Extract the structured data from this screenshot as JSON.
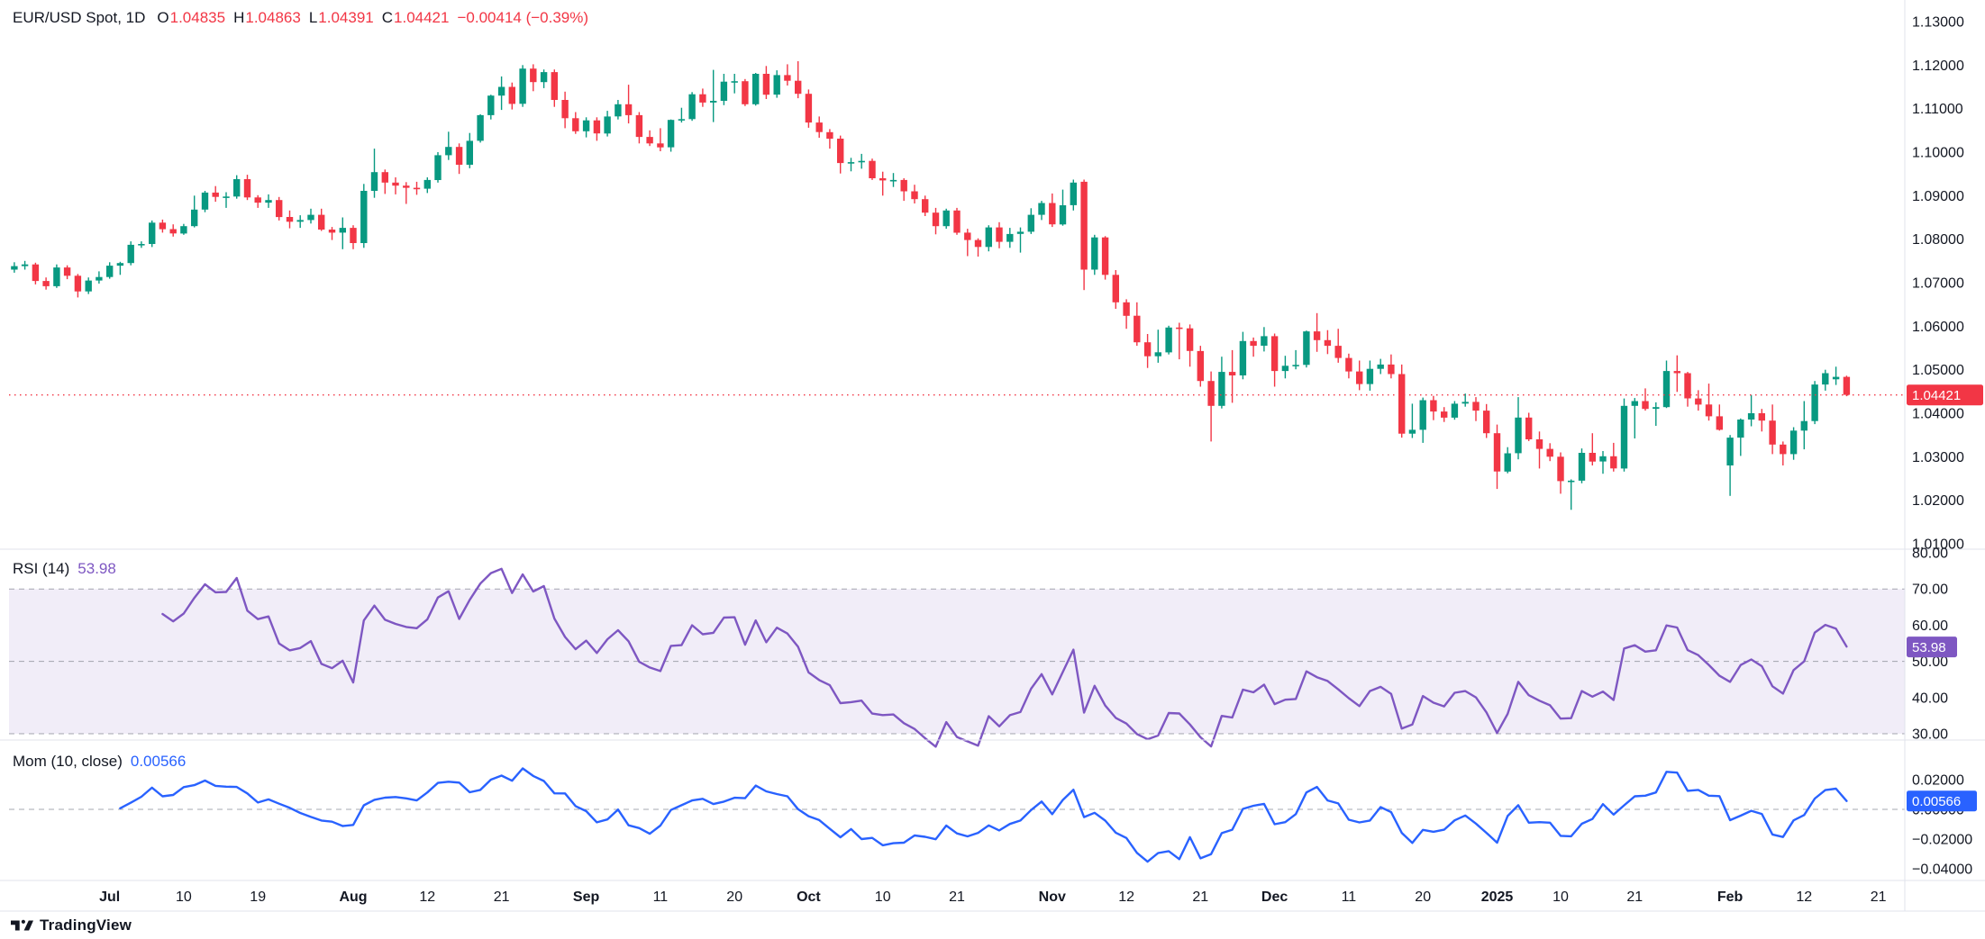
{
  "header": {
    "symbol_title": "EUR/USD Spot, 1D",
    "ohlc": {
      "open_label": "O",
      "open": "1.04835",
      "high_label": "H",
      "high": "1.04863",
      "low_label": "L",
      "low": "1.04391",
      "close_label": "C",
      "close": "1.04421",
      "change": "−0.00414 (−0.39%)"
    }
  },
  "indicators": {
    "rsi": {
      "title": "RSI (14)",
      "value": "53.98"
    },
    "momentum": {
      "title": "Mom (10, close)",
      "value": "0.00566"
    }
  },
  "axes": {
    "price": {
      "labels": [
        {
          "value": 1.13,
          "label": "1.13000"
        },
        {
          "value": 1.12,
          "label": "1.12000"
        },
        {
          "value": 1.11,
          "label": "1.11000"
        },
        {
          "value": 1.1,
          "label": "1.10000"
        },
        {
          "value": 1.09,
          "label": "1.09000"
        },
        {
          "value": 1.08,
          "label": "1.08000"
        },
        {
          "value": 1.07,
          "label": "1.07000"
        },
        {
          "value": 1.06,
          "label": "1.06000"
        },
        {
          "value": 1.05,
          "label": "1.05000"
        },
        {
          "value": 1.04,
          "label": "1.04000"
        },
        {
          "value": 1.03,
          "label": "1.03000"
        },
        {
          "value": 1.02,
          "label": "1.02000"
        },
        {
          "value": 1.01,
          "label": "1.01000"
        }
      ],
      "last_price": {
        "value": 1.04421,
        "label": "1.04421"
      }
    },
    "rsi": {
      "labels": [
        {
          "value": 80,
          "label": "80.00"
        },
        {
          "value": 70,
          "label": "70.00"
        },
        {
          "value": 60,
          "label": "60.00"
        },
        {
          "value": 50,
          "label": "50.00"
        },
        {
          "value": 40,
          "label": "40.00"
        },
        {
          "value": 30,
          "label": "30.00"
        }
      ],
      "badge": {
        "value": 53.98,
        "label": "53.98"
      }
    },
    "momentum": {
      "labels": [
        {
          "value": 0.02,
          "label": "0.02000"
        },
        {
          "value": 0.0,
          "label": "0.00000"
        },
        {
          "value": -0.02,
          "label": "−0.02000"
        },
        {
          "value": -0.04,
          "label": "−0.04000"
        }
      ],
      "badge": {
        "value": 0.00566,
        "label": "0.00566"
      }
    },
    "time": {
      "labels": [
        {
          "slot": 9,
          "label": "Jul",
          "major": true
        },
        {
          "slot": 16,
          "label": "10",
          "major": false
        },
        {
          "slot": 23,
          "label": "19",
          "major": false
        },
        {
          "slot": 32,
          "label": "Aug",
          "major": true
        },
        {
          "slot": 39,
          "label": "12",
          "major": false
        },
        {
          "slot": 46,
          "label": "21",
          "major": false
        },
        {
          "slot": 54,
          "label": "Sep",
          "major": true
        },
        {
          "slot": 61,
          "label": "11",
          "major": false
        },
        {
          "slot": 68,
          "label": "20",
          "major": false
        },
        {
          "slot": 75,
          "label": "Oct",
          "major": true
        },
        {
          "slot": 82,
          "label": "10",
          "major": false
        },
        {
          "slot": 89,
          "label": "21",
          "major": false
        },
        {
          "slot": 98,
          "label": "Nov",
          "major": true
        },
        {
          "slot": 105,
          "label": "12",
          "major": false
        },
        {
          "slot": 112,
          "label": "21",
          "major": false
        },
        {
          "slot": 119,
          "label": "Dec",
          "major": true
        },
        {
          "slot": 126,
          "label": "11",
          "major": false
        },
        {
          "slot": 133,
          "label": "20",
          "major": false
        },
        {
          "slot": 140,
          "label": "2025",
          "major": true
        },
        {
          "slot": 146,
          "label": "10",
          "major": false
        },
        {
          "slot": 153,
          "label": "21",
          "major": false
        },
        {
          "slot": 162,
          "label": "Feb",
          "major": true
        },
        {
          "slot": 169,
          "label": "12",
          "major": false
        },
        {
          "slot": 176,
          "label": "21",
          "major": false
        }
      ]
    }
  },
  "branding": {
    "name": "TradingView"
  },
  "colors": {
    "up": "#089981",
    "down": "#f23645",
    "rsi_line": "#7e57c2",
    "rsi_band_fill": "rgba(126,87,194,0.11)",
    "momentum_line": "#2962ff",
    "last_price": "#f23645",
    "grid_line": "#e0e3eb",
    "dashed_level": "#787b86",
    "axis_text": "#131722"
  },
  "chart_data": {
    "type": "candlestick",
    "title": "EUR/USD Spot, 1D",
    "symbol": "EUR/USD Spot",
    "interval": "1D",
    "panes": [
      "price",
      "rsi",
      "momentum"
    ],
    "price_axis_range": [
      1.01,
      1.13
    ],
    "rsi_settings": {
      "period": 14,
      "overbought": 70,
      "middle": 50,
      "oversold": 30,
      "last": 53.98
    },
    "momentum_settings": {
      "period": 10,
      "source": "close",
      "last": 0.00566
    },
    "last_bar": {
      "open": 1.04835,
      "high": 1.04863,
      "low": 1.04391,
      "close": 1.04421,
      "change": -0.00414,
      "change_pct": -0.39
    },
    "candles": [
      [
        1.073,
        1.0747,
        1.0723,
        1.0738
      ],
      [
        1.0738,
        1.075,
        1.073,
        1.0742
      ],
      [
        1.0742,
        1.0746,
        1.0696,
        1.0704
      ],
      [
        1.0704,
        1.0712,
        1.0684,
        1.0692
      ],
      [
        1.0692,
        1.0742,
        1.0688,
        1.0735
      ],
      [
        1.0735,
        1.074,
        1.0708,
        1.0716
      ],
      [
        1.0716,
        1.072,
        1.0666,
        1.068
      ],
      [
        1.068,
        1.0712,
        1.0674,
        1.0705
      ],
      [
        1.0705,
        1.0726,
        1.0698,
        1.0713
      ],
      [
        1.0713,
        1.0747,
        1.0709,
        1.0739
      ],
      [
        1.0739,
        1.0748,
        1.0718,
        1.0745
      ],
      [
        1.0745,
        1.0795,
        1.074,
        1.0787
      ],
      [
        1.0787,
        1.0795,
        1.078,
        1.0789
      ],
      [
        1.0789,
        1.0843,
        1.0782,
        1.0838
      ],
      [
        1.0838,
        1.0845,
        1.0815,
        1.0823
      ],
      [
        1.0823,
        1.0834,
        1.0806,
        1.0813
      ],
      [
        1.0813,
        1.0835,
        1.081,
        1.083
      ],
      [
        1.083,
        1.09,
        1.0827,
        1.0868
      ],
      [
        1.0868,
        1.0911,
        1.0862,
        1.0907
      ],
      [
        1.0907,
        1.0922,
        1.0886,
        1.0897
      ],
      [
        1.0897,
        1.0908,
        1.0872,
        1.0898
      ],
      [
        1.0898,
        1.0947,
        1.0893,
        1.0938
      ],
      [
        1.0938,
        1.0948,
        1.089,
        1.0896
      ],
      [
        1.0896,
        1.0901,
        1.0872,
        1.0884
      ],
      [
        1.0884,
        1.0903,
        1.0872,
        1.089
      ],
      [
        1.089,
        1.0897,
        1.0843,
        1.0851
      ],
      [
        1.0851,
        1.0866,
        1.0825,
        1.084
      ],
      [
        1.084,
        1.0855,
        1.0826,
        1.0844
      ],
      [
        1.0844,
        1.087,
        1.0836,
        1.0856
      ],
      [
        1.0856,
        1.087,
        1.0819,
        1.0822
      ],
      [
        1.0822,
        1.0828,
        1.0798,
        1.0815
      ],
      [
        1.0815,
        1.085,
        1.0777,
        1.0826
      ],
      [
        1.0826,
        1.0832,
        1.0777,
        1.0791
      ],
      [
        1.0791,
        1.0927,
        1.078,
        1.0911
      ],
      [
        1.0911,
        1.1008,
        1.0895,
        1.0954
      ],
      [
        1.0954,
        1.096,
        1.0904,
        1.093
      ],
      [
        1.093,
        1.0942,
        1.0903,
        1.0923
      ],
      [
        1.0923,
        1.0931,
        1.0881,
        1.0918
      ],
      [
        1.0918,
        1.0932,
        1.0902,
        1.0916
      ],
      [
        1.0916,
        1.0942,
        1.0906,
        1.0936
      ],
      [
        1.0936,
        1.1,
        1.093,
        1.0993
      ],
      [
        1.0993,
        1.1047,
        1.0982,
        1.1012
      ],
      [
        1.1012,
        1.102,
        1.095,
        1.0971
      ],
      [
        1.0971,
        1.1044,
        1.0963,
        1.1026
      ],
      [
        1.1026,
        1.1087,
        1.1022,
        1.1085
      ],
      [
        1.1085,
        1.1132,
        1.1075,
        1.113
      ],
      [
        1.113,
        1.1174,
        1.1097,
        1.115
      ],
      [
        1.115,
        1.116,
        1.1098,
        1.1111
      ],
      [
        1.1111,
        1.12,
        1.1104,
        1.1192
      ],
      [
        1.1192,
        1.1202,
        1.114,
        1.1161
      ],
      [
        1.1161,
        1.119,
        1.1147,
        1.1184
      ],
      [
        1.1184,
        1.119,
        1.1104,
        1.112
      ],
      [
        1.112,
        1.1139,
        1.1055,
        1.1078
      ],
      [
        1.1078,
        1.1092,
        1.1042,
        1.1048
      ],
      [
        1.1048,
        1.108,
        1.1034,
        1.1073
      ],
      [
        1.1073,
        1.108,
        1.1026,
        1.1043
      ],
      [
        1.1043,
        1.1095,
        1.1036,
        1.1082
      ],
      [
        1.1082,
        1.112,
        1.1075,
        1.111
      ],
      [
        1.111,
        1.1155,
        1.1066,
        1.1085
      ],
      [
        1.1085,
        1.1092,
        1.102,
        1.1035
      ],
      [
        1.1035,
        1.105,
        1.1014,
        1.102
      ],
      [
        1.102,
        1.1055,
        1.1002,
        1.1011
      ],
      [
        1.1011,
        1.1075,
        1.1001,
        1.1074
      ],
      [
        1.1074,
        1.1102,
        1.1068,
        1.1076
      ],
      [
        1.1076,
        1.1138,
        1.1072,
        1.1133
      ],
      [
        1.1133,
        1.1146,
        1.1104,
        1.1114
      ],
      [
        1.1114,
        1.1189,
        1.1069,
        1.1118
      ],
      [
        1.1118,
        1.118,
        1.1108,
        1.1162
      ],
      [
        1.1162,
        1.118,
        1.1135,
        1.1163
      ],
      [
        1.1163,
        1.1168,
        1.1106,
        1.111
      ],
      [
        1.111,
        1.1182,
        1.1107,
        1.118
      ],
      [
        1.118,
        1.1198,
        1.1122,
        1.1132
      ],
      [
        1.1132,
        1.1188,
        1.1125,
        1.1177
      ],
      [
        1.1177,
        1.1202,
        1.1153,
        1.1164
      ],
      [
        1.1164,
        1.1209,
        1.1124,
        1.1134
      ],
      [
        1.1134,
        1.1144,
        1.1056,
        1.1068
      ],
      [
        1.1068,
        1.1082,
        1.1033,
        1.1046
      ],
      [
        1.1046,
        1.1053,
        1.1008,
        1.1031
      ],
      [
        1.1031,
        1.1038,
        1.0951,
        1.0975
      ],
      [
        1.0975,
        1.0987,
        1.0956,
        1.0977
      ],
      [
        1.0977,
        1.0996,
        1.0962,
        1.098
      ],
      [
        1.098,
        1.0985,
        1.0936,
        1.094
      ],
      [
        1.094,
        1.0955,
        1.09,
        1.0935
      ],
      [
        1.0935,
        1.0952,
        1.092,
        1.0936
      ],
      [
        1.0936,
        1.094,
        1.0888,
        1.091
      ],
      [
        1.091,
        1.0925,
        1.0882,
        1.0892
      ],
      [
        1.0892,
        1.09,
        1.0853,
        1.0861
      ],
      [
        1.0861,
        1.0872,
        1.0811,
        1.083
      ],
      [
        1.083,
        1.087,
        1.0824,
        1.0866
      ],
      [
        1.0866,
        1.0872,
        1.081,
        1.0815
      ],
      [
        1.0815,
        1.0824,
        1.0761,
        1.0798
      ],
      [
        1.0798,
        1.0802,
        1.076,
        1.0782
      ],
      [
        1.0782,
        1.0832,
        1.0772,
        1.0827
      ],
      [
        1.0827,
        1.0839,
        1.0779,
        1.0794
      ],
      [
        1.0794,
        1.0826,
        1.078,
        1.0812
      ],
      [
        1.0812,
        1.0827,
        1.0769,
        1.0817
      ],
      [
        1.0817,
        1.0871,
        1.0812,
        1.0856
      ],
      [
        1.0856,
        1.0888,
        1.0844,
        1.0883
      ],
      [
        1.0883,
        1.0905,
        1.0828,
        1.0834
      ],
      [
        1.0834,
        1.0914,
        1.0831,
        1.0878
      ],
      [
        1.0878,
        1.0937,
        1.0866,
        1.093
      ],
      [
        1.0932,
        1.0937,
        1.0683,
        1.073
      ],
      [
        1.073,
        1.081,
        1.0718,
        1.0804
      ],
      [
        1.0804,
        1.0807,
        1.0707,
        1.0718
      ],
      [
        1.0718,
        1.0729,
        1.064,
        1.0655
      ],
      [
        1.0655,
        1.0662,
        1.0594,
        1.0624
      ],
      [
        1.0624,
        1.0655,
        1.0555,
        1.0563
      ],
      [
        1.0563,
        1.0582,
        1.0504,
        1.0531
      ],
      [
        1.0531,
        1.0592,
        1.0516,
        1.054
      ],
      [
        1.054,
        1.0601,
        1.0535,
        1.0597
      ],
      [
        1.0597,
        1.0608,
        1.0524,
        1.0595
      ],
      [
        1.0595,
        1.0604,
        1.0507,
        1.0543
      ],
      [
        1.0543,
        1.0555,
        1.0461,
        1.0474
      ],
      [
        1.0474,
        1.0496,
        1.0335,
        1.0417
      ],
      [
        1.0417,
        1.053,
        1.0411,
        1.0495
      ],
      [
        1.0495,
        1.0545,
        1.0424,
        1.0487
      ],
      [
        1.0487,
        1.0587,
        1.0478,
        1.0566
      ],
      [
        1.0566,
        1.0574,
        1.053,
        1.0555
      ],
      [
        1.0555,
        1.0598,
        1.0542,
        1.0577
      ],
      [
        1.0577,
        1.0583,
        1.0461,
        1.0497
      ],
      [
        1.0497,
        1.0532,
        1.048,
        1.0509
      ],
      [
        1.0509,
        1.0545,
        1.0501,
        1.0511
      ],
      [
        1.0511,
        1.059,
        1.0505,
        1.0588
      ],
      [
        1.0588,
        1.063,
        1.0541,
        1.0568
      ],
      [
        1.0568,
        1.0591,
        1.0536,
        1.0555
      ],
      [
        1.0555,
        1.0594,
        1.0516,
        1.0527
      ],
      [
        1.0527,
        1.0537,
        1.048,
        1.0496
      ],
      [
        1.0496,
        1.0521,
        1.0453,
        1.0467
      ],
      [
        1.0467,
        1.0521,
        1.0452,
        1.0502
      ],
      [
        1.0502,
        1.0525,
        1.049,
        1.0512
      ],
      [
        1.0512,
        1.0535,
        1.048,
        1.049
      ],
      [
        1.049,
        1.0512,
        1.0344,
        1.0353
      ],
      [
        1.0353,
        1.0422,
        1.0343,
        1.0362
      ],
      [
        1.0362,
        1.0436,
        1.0332,
        1.043
      ],
      [
        1.043,
        1.044,
        1.0384,
        1.0404
      ],
      [
        1.0404,
        1.0414,
        1.038,
        1.039
      ],
      [
        1.039,
        1.0428,
        1.0385,
        1.0422
      ],
      [
        1.0422,
        1.0445,
        1.0415,
        1.0426
      ],
      [
        1.0426,
        1.0437,
        1.0382,
        1.0406
      ],
      [
        1.0406,
        1.0421,
        1.0343,
        1.0354
      ],
      [
        1.0354,
        1.0374,
        1.0226,
        1.0266
      ],
      [
        1.0266,
        1.0322,
        1.0262,
        1.0308
      ],
      [
        1.0308,
        1.0437,
        1.0294,
        1.039
      ],
      [
        1.039,
        1.0401,
        1.0336,
        1.034
      ],
      [
        1.034,
        1.0358,
        1.0273,
        1.0318
      ],
      [
        1.0318,
        1.0331,
        1.029,
        1.03
      ],
      [
        1.03,
        1.031,
        1.0215,
        1.0244
      ],
      [
        1.0244,
        1.0248,
        1.0178,
        1.0245
      ],
      [
        1.0245,
        1.0319,
        1.0239,
        1.0309
      ],
      [
        1.0309,
        1.0354,
        1.028,
        1.0289
      ],
      [
        1.0289,
        1.0313,
        1.0261,
        1.0301
      ],
      [
        1.0301,
        1.0332,
        1.0266,
        1.0273
      ],
      [
        1.0273,
        1.0434,
        1.0266,
        1.0417
      ],
      [
        1.0417,
        1.0435,
        1.0342,
        1.0428
      ],
      [
        1.0428,
        1.0457,
        1.0406,
        1.041
      ],
      [
        1.041,
        1.0425,
        1.0371,
        1.0414
      ],
      [
        1.0414,
        1.0521,
        1.0412,
        1.0497
      ],
      [
        1.0497,
        1.0533,
        1.0449,
        1.0492
      ],
      [
        1.0492,
        1.0495,
        1.0415,
        1.0434
      ],
      [
        1.0434,
        1.0453,
        1.0406,
        1.042
      ],
      [
        1.042,
        1.0468,
        1.0383,
        1.0393
      ],
      [
        1.0393,
        1.042,
        1.036,
        1.0362
      ],
      [
        1.028,
        1.035,
        1.021,
        1.0344
      ],
      [
        1.0344,
        1.0388,
        1.0302,
        1.03855
      ],
      [
        1.03855,
        1.0442,
        1.037,
        1.04
      ],
      [
        1.04,
        1.041,
        1.0358,
        1.0383
      ],
      [
        1.0383,
        1.042,
        1.0306,
        1.0328
      ],
      [
        1.0328,
        1.0335,
        1.028,
        1.0306
      ],
      [
        1.0306,
        1.0368,
        1.0293,
        1.036
      ],
      [
        1.036,
        1.0428,
        1.0317,
        1.0382
      ],
      [
        1.0382,
        1.0474,
        1.0375,
        1.0466
      ],
      [
        1.0466,
        1.05,
        1.0452,
        1.0492
      ],
      [
        1.0478,
        1.0507,
        1.0465,
        1.04835
      ],
      [
        1.04835,
        1.04863,
        1.04391,
        1.04421
      ]
    ]
  }
}
